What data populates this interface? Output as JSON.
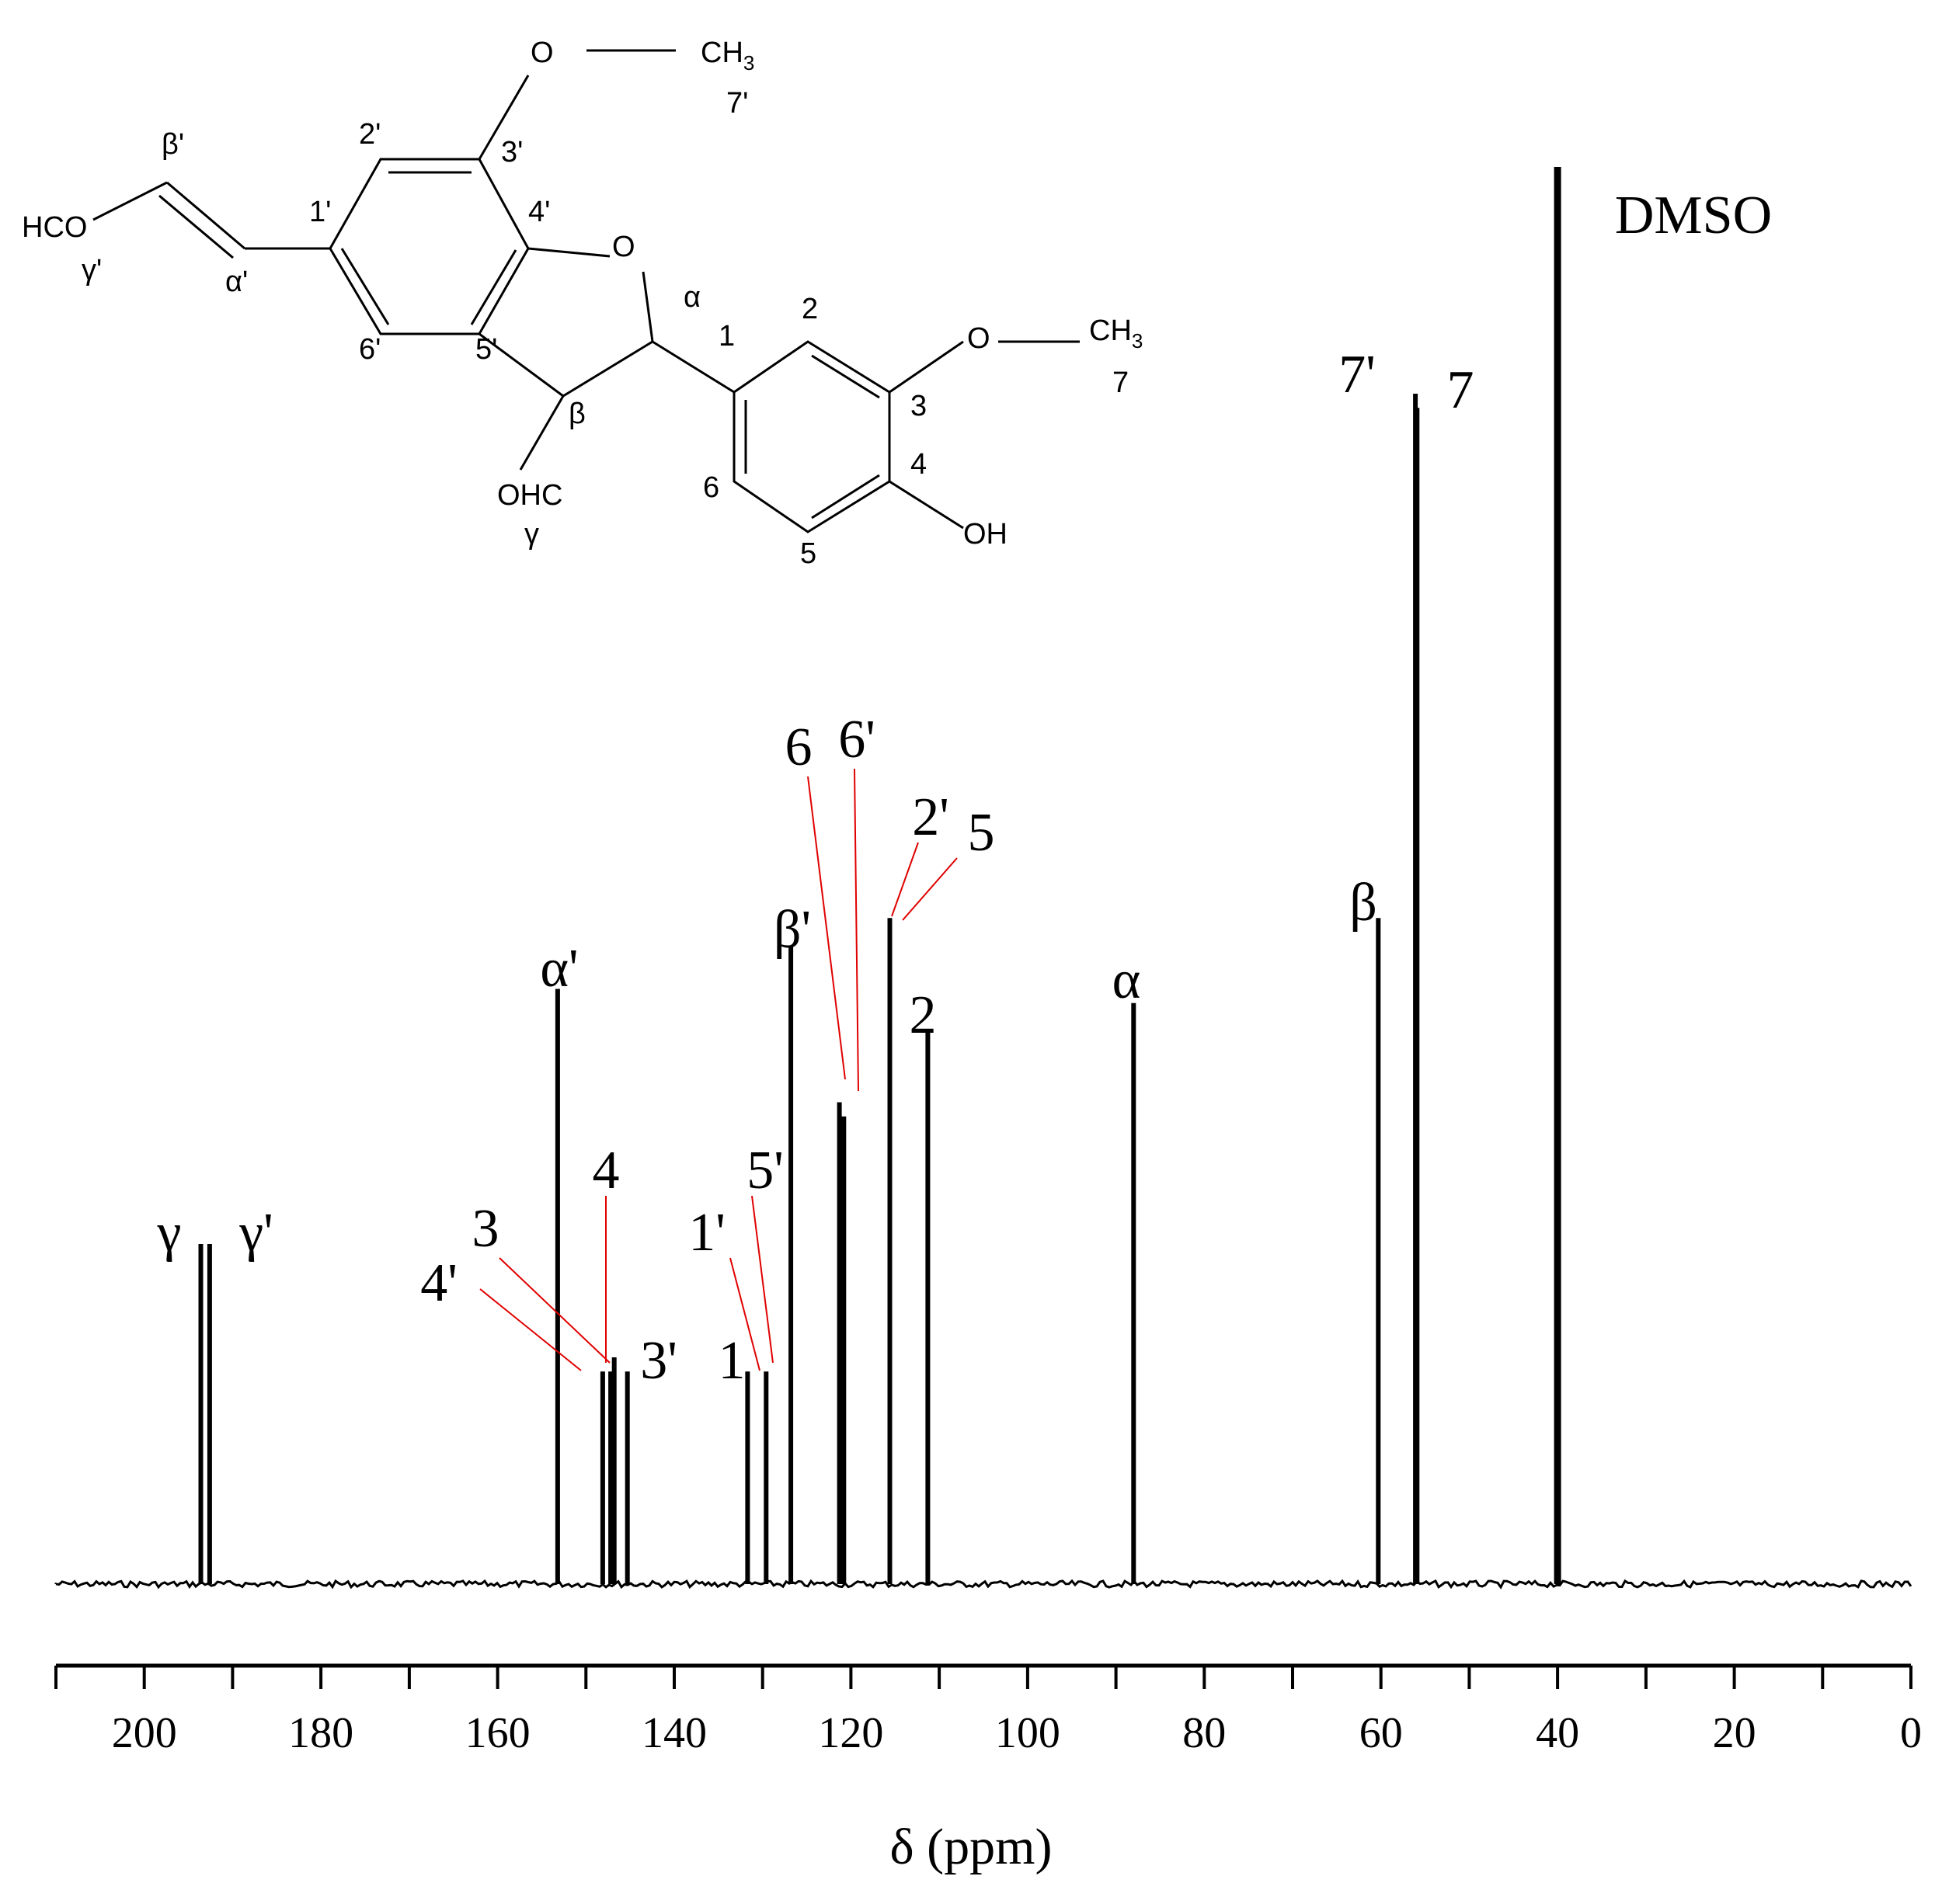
{
  "chart_data": {
    "type": "line",
    "xlabel": "δ (ppm)",
    "ylabel": "",
    "xlim": [
      210,
      0
    ],
    "x_ticks": [
      200,
      180,
      160,
      140,
      120,
      100,
      80,
      60,
      40,
      20,
      0
    ],
    "ylim": [
      0,
      1
    ],
    "grid": false,
    "series": [
      {
        "values": [
          {
            "ppm": 193.6,
            "intensity": 0.24
          },
          {
            "ppm": 192.6,
            "intensity": 0.24
          },
          {
            "ppm": 153.2,
            "intensity": 0.42
          },
          {
            "ppm": 148.1,
            "intensity": 0.15
          },
          {
            "ppm": 147.2,
            "intensity": 0.15
          },
          {
            "ppm": 146.8,
            "intensity": 0.16
          },
          {
            "ppm": 145.3,
            "intensity": 0.15
          },
          {
            "ppm": 131.7,
            "intensity": 0.15
          },
          {
            "ppm": 129.6,
            "intensity": 0.15
          },
          {
            "ppm": 126.8,
            "intensity": 0.45
          },
          {
            "ppm": 121.3,
            "intensity": 0.34
          },
          {
            "ppm": 120.8,
            "intensity": 0.33
          },
          {
            "ppm": 115.6,
            "intensity": 0.47
          },
          {
            "ppm": 111.3,
            "intensity": 0.39
          },
          {
            "ppm": 88.0,
            "intensity": 0.41
          },
          {
            "ppm": 60.3,
            "intensity": 0.47
          },
          {
            "ppm": 56.1,
            "intensity": 0.84
          },
          {
            "ppm": 55.9,
            "intensity": 0.83
          },
          {
            "ppm": 40.0,
            "intensity": 1.0
          }
        ]
      }
    ],
    "peak_labels": [
      {
        "text": "γ",
        "ppm": 193.6
      },
      {
        "text": "γ'",
        "ppm": 192.6
      },
      {
        "text": "α'",
        "ppm": 153.2
      },
      {
        "text": "4'",
        "ppm": 148.1
      },
      {
        "text": "3",
        "ppm": 147.2
      },
      {
        "text": "4",
        "ppm": 146.8
      },
      {
        "text": "3'",
        "ppm": 145.3
      },
      {
        "text": "1",
        "ppm": 131.7
      },
      {
        "text": "1'",
        "ppm": 131.0
      },
      {
        "text": "5'",
        "ppm": 129.6
      },
      {
        "text": "β'",
        "ppm": 126.8
      },
      {
        "text": "6",
        "ppm": 121.3
      },
      {
        "text": "6'",
        "ppm": 120.8
      },
      {
        "text": "2'",
        "ppm": 115.6
      },
      {
        "text": "5",
        "ppm": 115.3
      },
      {
        "text": "2",
        "ppm": 111.3
      },
      {
        "text": "α",
        "ppm": 88.0
      },
      {
        "text": "β",
        "ppm": 60.3
      },
      {
        "text": "7'",
        "ppm": 56.1
      },
      {
        "text": "7",
        "ppm": 55.9
      },
      {
        "text": "DMSO",
        "ppm": 40.0
      }
    ]
  },
  "structure": {
    "atoms": {
      "o_top": "O",
      "ch3_top": "CH",
      "ch3_top_sub": "3",
      "c7p": "7'",
      "c2p": "2'",
      "c3p": "3'",
      "c1p": "1'",
      "c4p": "4'",
      "c6p": "6'",
      "c5p": "5'",
      "betap": "β'",
      "hco": "HCO",
      "gammap": "γ'",
      "alphap": "α'",
      "o_ring": "O",
      "alpha": "α",
      "c1": "1",
      "c2": "2",
      "beta": "β",
      "o_right": "O",
      "ch3_right": "CH",
      "ch3_right_sub": "3",
      "c7": "7",
      "c3": "3",
      "c4": "4",
      "c6": "6",
      "c5": "5",
      "ohc": "OHC",
      "gamma": "γ",
      "oh": "OH"
    }
  }
}
